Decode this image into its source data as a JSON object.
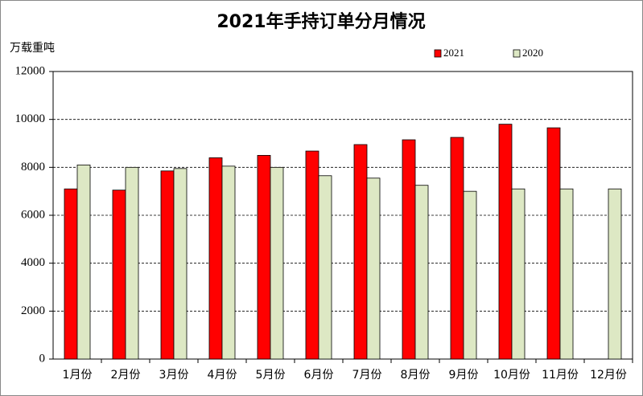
{
  "chart_data": {
    "type": "bar",
    "title": "2021年手持订单分月情况",
    "y_label": "万载重吨",
    "categories": [
      "1月份",
      "2月份",
      "3月份",
      "4月份",
      "5月份",
      "6月份",
      "7月份",
      "8月份",
      "9月份",
      "10月份",
      "11月份",
      "12月份"
    ],
    "series": [
      {
        "name": "2021",
        "color": "#ff0000",
        "values": [
          7100,
          7050,
          7850,
          8400,
          8500,
          8680,
          8950,
          9150,
          9250,
          9800,
          9650,
          null
        ]
      },
      {
        "name": "2020",
        "color": "#dde8c4",
        "values": [
          8100,
          8000,
          7950,
          8050,
          8000,
          7650,
          7550,
          7250,
          7000,
          7100,
          7100,
          7100
        ]
      }
    ],
    "ylim": [
      0,
      12000
    ],
    "yticks": [
      0,
      2000,
      4000,
      6000,
      8000,
      10000,
      12000
    ],
    "grid": true
  }
}
